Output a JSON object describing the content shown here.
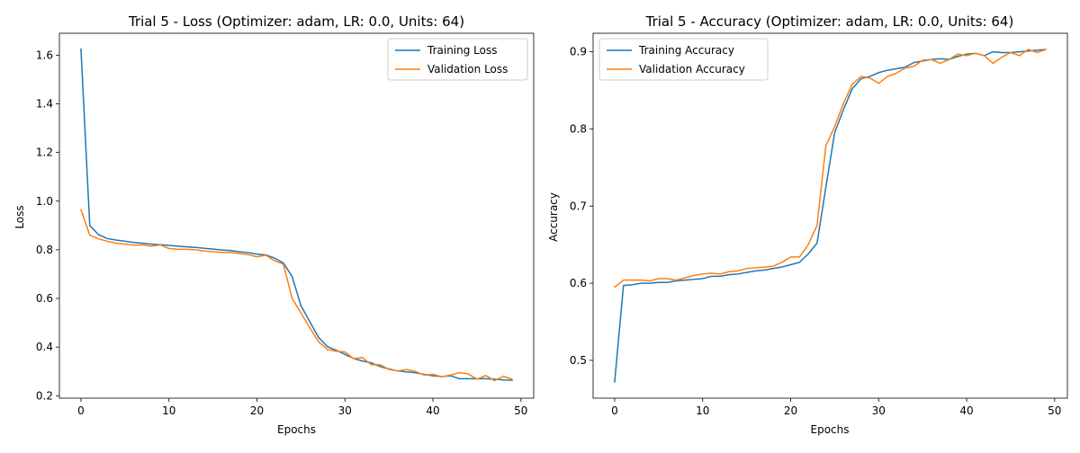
{
  "figure": {
    "colors": {
      "training": "#1f77b4",
      "validation": "#ff7f0e"
    }
  },
  "chart_data": [
    {
      "type": "line",
      "title": "Trial 5 - Loss (Optimizer: adam, LR: 0.0, Units: 64)",
      "xlabel": "Epochs",
      "ylabel": "Loss",
      "xlim": [
        -2.45,
        51.45
      ],
      "ylim": [
        0.19,
        1.69
      ],
      "xticks": [
        0,
        10,
        20,
        30,
        40,
        50
      ],
      "yticks": [
        0.2,
        0.4,
        0.6,
        0.8,
        1.0,
        1.2,
        1.4,
        1.6
      ],
      "ytick_labels": [
        "0.2",
        "0.4",
        "0.6",
        "0.8",
        "1.0",
        "1.2",
        "1.4",
        "1.6"
      ],
      "legend": "upper right",
      "grid": false,
      "series": [
        {
          "name": "Training Loss",
          "color": "#1f77b4",
          "values": [
            1.625,
            0.9,
            0.862,
            0.846,
            0.84,
            0.835,
            0.83,
            0.827,
            0.823,
            0.821,
            0.818,
            0.815,
            0.812,
            0.81,
            0.806,
            0.803,
            0.799,
            0.797,
            0.792,
            0.788,
            0.782,
            0.779,
            0.766,
            0.746,
            0.69,
            0.57,
            0.505,
            0.44,
            0.402,
            0.387,
            0.37,
            0.353,
            0.343,
            0.335,
            0.32,
            0.31,
            0.302,
            0.298,
            0.295,
            0.288,
            0.282,
            0.279,
            0.282,
            0.27,
            0.27,
            0.27,
            0.27,
            0.268,
            0.265,
            0.264
          ]
        },
        {
          "name": "Validation Loss",
          "color": "#ff7f0e",
          "values": [
            0.965,
            0.86,
            0.845,
            0.835,
            0.827,
            0.823,
            0.819,
            0.82,
            0.815,
            0.82,
            0.805,
            0.802,
            0.802,
            0.8,
            0.795,
            0.792,
            0.789,
            0.789,
            0.785,
            0.78,
            0.771,
            0.778,
            0.755,
            0.741,
            0.6,
            0.54,
            0.48,
            0.422,
            0.39,
            0.383,
            0.38,
            0.352,
            0.357,
            0.327,
            0.328,
            0.308,
            0.302,
            0.308,
            0.3,
            0.285,
            0.288,
            0.278,
            0.285,
            0.295,
            0.29,
            0.268,
            0.283,
            0.262,
            0.28,
            0.268
          ]
        }
      ]
    },
    {
      "type": "line",
      "title": "Trial 5 - Accuracy (Optimizer: adam, LR: 0.0, Units: 64)",
      "xlabel": "Epochs",
      "ylabel": "Accuracy",
      "xlim": [
        -2.45,
        51.45
      ],
      "ylim": [
        0.451,
        0.924
      ],
      "xticks": [
        0,
        10,
        20,
        30,
        40,
        50
      ],
      "yticks": [
        0.5,
        0.6,
        0.7,
        0.8,
        0.9
      ],
      "ytick_labels": [
        "0.5",
        "0.6",
        "0.7",
        "0.8",
        "0.9"
      ],
      "legend": "upper left",
      "grid": false,
      "series": [
        {
          "name": "Training Accuracy",
          "color": "#1f77b4",
          "values": [
            0.472,
            0.597,
            0.598,
            0.6,
            0.6,
            0.601,
            0.601,
            0.603,
            0.604,
            0.605,
            0.606,
            0.609,
            0.609,
            0.611,
            0.612,
            0.614,
            0.616,
            0.617,
            0.619,
            0.621,
            0.624,
            0.627,
            0.638,
            0.652,
            0.724,
            0.795,
            0.825,
            0.852,
            0.865,
            0.868,
            0.873,
            0.876,
            0.878,
            0.88,
            0.886,
            0.888,
            0.89,
            0.891,
            0.89,
            0.894,
            0.897,
            0.898,
            0.895,
            0.9,
            0.899,
            0.899,
            0.9,
            0.901,
            0.902,
            0.903
          ]
        },
        {
          "name": "Validation Accuracy",
          "color": "#ff7f0e",
          "values": [
            0.595,
            0.604,
            0.604,
            0.604,
            0.603,
            0.606,
            0.606,
            0.604,
            0.607,
            0.61,
            0.612,
            0.613,
            0.612,
            0.615,
            0.616,
            0.619,
            0.62,
            0.621,
            0.622,
            0.627,
            0.634,
            0.634,
            0.65,
            0.675,
            0.778,
            0.803,
            0.833,
            0.858,
            0.868,
            0.866,
            0.859,
            0.868,
            0.872,
            0.879,
            0.881,
            0.889,
            0.89,
            0.885,
            0.89,
            0.897,
            0.895,
            0.898,
            0.895,
            0.885,
            0.893,
            0.899,
            0.895,
            0.903,
            0.899,
            0.903
          ]
        }
      ]
    }
  ]
}
